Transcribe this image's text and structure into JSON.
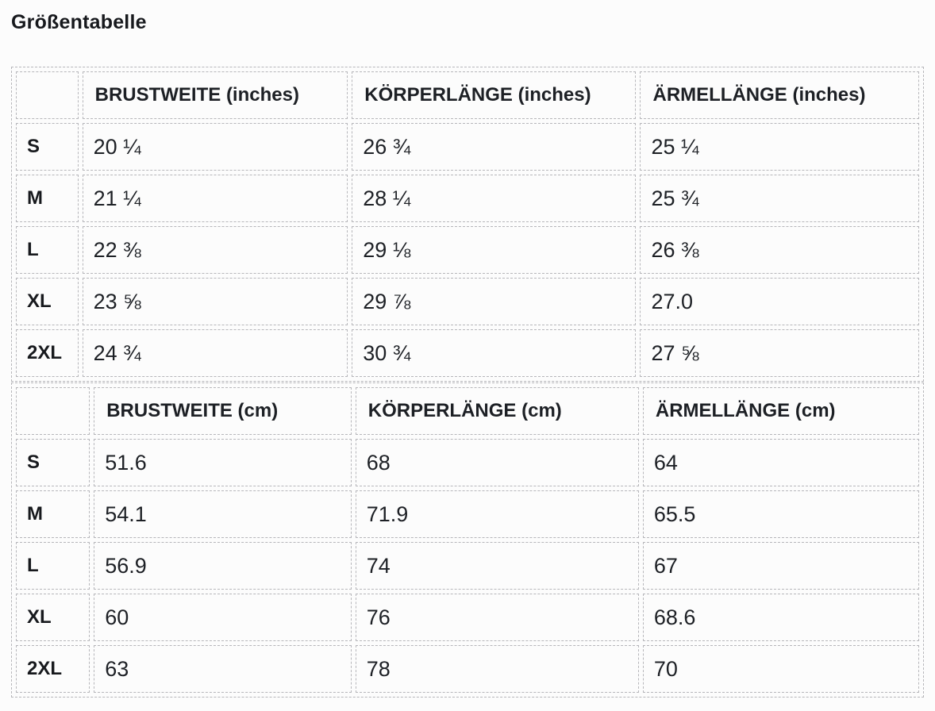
{
  "page_title": "Größentabelle",
  "colors": {
    "background": "#fcfcfc",
    "text": "#1d2025",
    "border": "#b6b6ba"
  },
  "tables": [
    {
      "id": "inches",
      "columns": [
        "",
        "BRUSTWEITE (inches)",
        "KÖRPERLÄNGE (inches)",
        "ÄRMELLÄNGE (inches)"
      ],
      "rows": [
        {
          "size": "S",
          "values": [
            "20 ¼",
            "26 ¾",
            "25 ¼"
          ]
        },
        {
          "size": "M",
          "values": [
            "21 ¼",
            "28 ¼",
            "25 ¾"
          ]
        },
        {
          "size": "L",
          "values": [
            "22 ⅜",
            "29 ⅛",
            "26 ⅜"
          ]
        },
        {
          "size": "XL",
          "values": [
            "23 ⅝",
            "29 ⅞",
            "27.0"
          ]
        },
        {
          "size": "2XL",
          "values": [
            "24 ¾",
            "30 ¾",
            "27 ⅝"
          ]
        }
      ]
    },
    {
      "id": "cm",
      "columns": [
        "",
        "BRUSTWEITE (cm)",
        "KÖRPERLÄNGE (cm)",
        "ÄRMELLÄNGE (cm)"
      ],
      "rows": [
        {
          "size": "S",
          "values": [
            "51.6",
            "68",
            "64"
          ]
        },
        {
          "size": "M",
          "values": [
            "54.1",
            "71.9",
            "65.5"
          ]
        },
        {
          "size": "L",
          "values": [
            "56.9",
            "74",
            "67"
          ]
        },
        {
          "size": "XL",
          "values": [
            "60",
            "76",
            "68.6"
          ]
        },
        {
          "size": "2XL",
          "values": [
            "63",
            "78",
            "70"
          ]
        }
      ]
    }
  ]
}
